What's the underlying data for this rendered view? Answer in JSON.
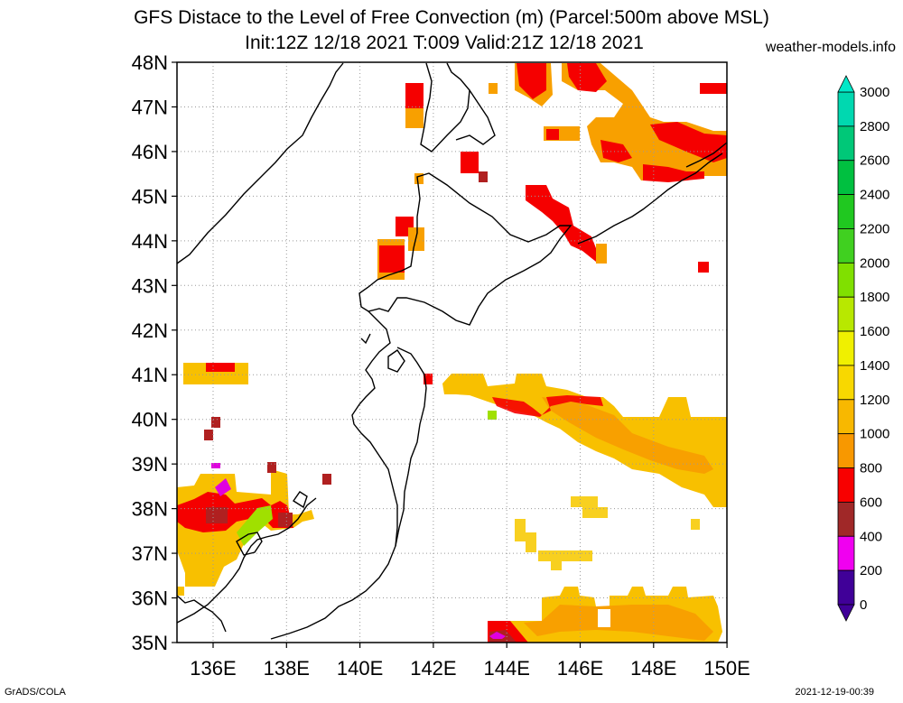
{
  "header": {
    "title_line1": "GFS Distace to the Level of Free Convection (m) (Parcel:500m above MSL)",
    "title_line2": "Init:12Z 12/18 2021 T:009 Valid:21Z 12/18 2021",
    "site": "weather-models.info"
  },
  "footer": {
    "left": "GrADS/COLA",
    "right": "2021-12-19-00:39"
  },
  "map": {
    "lat_labels": [
      "48N",
      "47N",
      "46N",
      "45N",
      "44N",
      "43N",
      "42N",
      "41N",
      "40N",
      "39N",
      "38N",
      "37N",
      "36N",
      "35N"
    ],
    "lon_labels": [
      "136E",
      "138E",
      "140E",
      "142E",
      "144E",
      "146E",
      "148E",
      "150E"
    ]
  },
  "colorbar": {
    "labels": [
      "3000",
      "2800",
      "2600",
      "2400",
      "2200",
      "2000",
      "1800",
      "1600",
      "1400",
      "1200",
      "1000",
      "800",
      "600",
      "400",
      "200",
      "0"
    ],
    "colors": [
      "#00e8c8",
      "#00d8b0",
      "#00c878",
      "#00c040",
      "#20c820",
      "#40d020",
      "#80e000",
      "#b8e800",
      "#f0f000",
      "#f8d800",
      "#f8b800",
      "#f89800",
      "#f80000",
      "#a02828",
      "#f000f0",
      "#400098"
    ]
  },
  "colors": {
    "red": "#f50000",
    "brown": "#b02020",
    "orange": "#f8a000",
    "yellow": "#f8d020",
    "magenta": "#e000e0",
    "green": "#a0e000"
  }
}
